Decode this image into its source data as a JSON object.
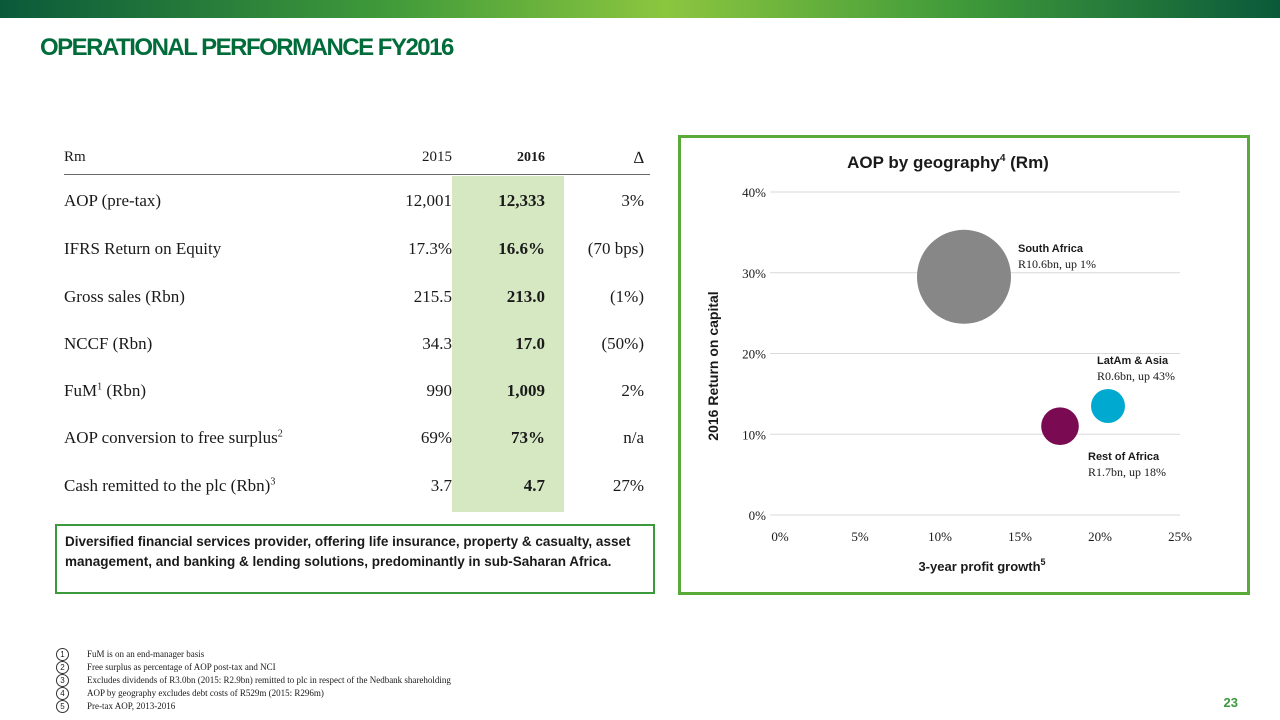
{
  "title": "OPERATIONAL PERFORMANCE FY2016",
  "table": {
    "header": {
      "unit": "Rm",
      "y2015": "2015",
      "y2016": "2016",
      "delta": "∆"
    },
    "rows": [
      {
        "label": "AOP (pre-tax)",
        "sup": "",
        "v2015": "12,001",
        "v2016": "12,333",
        "delta": "3%"
      },
      {
        "label": "IFRS Return on Equity",
        "sup": "",
        "v2015": "17.3%",
        "v2016": "16.6%",
        "delta": "(70 bps)"
      },
      {
        "label": "Gross sales (Rbn)",
        "sup": "",
        "v2015": "215.5",
        "v2016": "213.0",
        "delta": "(1%)"
      },
      {
        "label": "NCCF (Rbn)",
        "sup": "",
        "v2015": "34.3",
        "v2016": "17.0",
        "delta": "(50%)"
      },
      {
        "label": "FuM",
        "sup": "1",
        "label_after": " (Rbn)",
        "v2015": "990",
        "v2016": "1,009",
        "delta": "2%"
      },
      {
        "label": "AOP conversion to free surplus",
        "sup": "2",
        "label_after": "",
        "v2015": "69%",
        "v2016": "73%",
        "delta": "n/a"
      },
      {
        "label": "Cash remitted to the plc (Rbn)",
        "sup": "3",
        "label_after": "",
        "v2015": "3.7",
        "v2016": "4.7",
        "delta": "27%"
      }
    ]
  },
  "note": "Diversified financial services provider, offering life insurance, property & casualty, asset management, and banking & lending solutions, predominantly in sub-Saharan Africa.",
  "chart_data": {
    "type": "scatter",
    "subtype": "bubble",
    "title": "AOP by geography",
    "title_sup": "4",
    "title_after": " (Rm)",
    "xlabel": "3-year profit growth",
    "xlabel_sup": "5",
    "ylabel": "2016 Return on capital",
    "xlim": [
      0,
      25
    ],
    "ylim": [
      0,
      40
    ],
    "xticks": [
      "0%",
      "5%",
      "10%",
      "15%",
      "20%",
      "25%"
    ],
    "xtick_values": [
      0,
      5,
      10,
      15,
      20,
      25
    ],
    "yticks": [
      "0%",
      "10%",
      "20%",
      "30%",
      "40%"
    ],
    "ytick_values": [
      0,
      10,
      20,
      30,
      40
    ],
    "grid": true,
    "series": [
      {
        "name": "South Africa",
        "detail": "R10.6bn, up 1%",
        "x": 11.5,
        "y": 29.5,
        "size_bn": 10.6,
        "color": "#878787"
      },
      {
        "name": "Rest of Africa",
        "detail": "R1.7bn, up 18%",
        "x": 17.5,
        "y": 11,
        "size_bn": 1.7,
        "color": "#7a0a52"
      },
      {
        "name": "LatAm & Asia",
        "detail": "R0.6bn, up 43%",
        "x": 20.5,
        "y": 13.5,
        "size_bn": 0.6,
        "color": "#00a9d0"
      }
    ]
  },
  "footnotes": [
    {
      "num": "1",
      "text": "FuM is on an end-manager basis"
    },
    {
      "num": "2",
      "text": "Free surplus as percentage of AOP post-tax and NCI"
    },
    {
      "num": "3",
      "text": "Excludes dividends of R3.0bn (2015: R2.9bn) remitted to plc in respect of the Nedbank shareholding"
    },
    {
      "num": "4",
      "text": "AOP by geography excludes debt costs of R529m (2015: R296m)"
    },
    {
      "num": "5",
      "text": "Pre-tax AOP, 2013-2016"
    }
  ],
  "page_number": "23",
  "colors": {
    "brand_green": "#006c3a",
    "accent_green": "#3c9a3c",
    "highlight": "#d6e8c2"
  }
}
